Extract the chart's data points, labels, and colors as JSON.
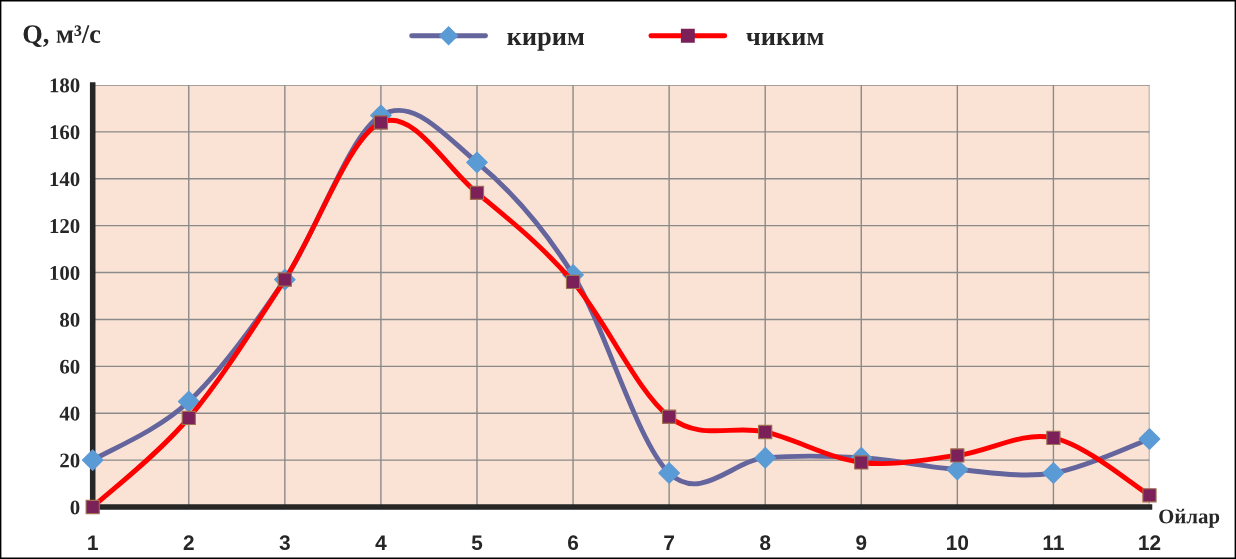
{
  "chart_data": {
    "type": "line",
    "ylabel": "Q, м³/с",
    "xlabel": "Ойлар",
    "x": [
      1,
      2,
      3,
      4,
      5,
      6,
      7,
      8,
      9,
      10,
      11,
      12
    ],
    "series": [
      {
        "name": "кирим",
        "color": "#65659e",
        "marker": "diamond",
        "values": [
          20,
          45,
          97,
          167,
          147,
          99,
          14.5,
          21,
          21,
          16,
          14.5,
          29
        ]
      },
      {
        "name": "чиким",
        "color": "#ff0000",
        "marker": "square",
        "values": [
          0,
          38,
          97,
          164,
          134,
          96,
          38.5,
          32,
          19,
          22,
          29.5,
          5
        ]
      }
    ],
    "xlim": [
      1,
      12
    ],
    "xticks": [
      1,
      2,
      3,
      4,
      5,
      6,
      7,
      8,
      9,
      10,
      11,
      12
    ],
    "ylim": [
      0,
      180
    ],
    "yticks": [
      0,
      20,
      40,
      60,
      80,
      100,
      120,
      140,
      160,
      180
    ],
    "grid": true,
    "legend": "top",
    "line_style": "solid"
  }
}
